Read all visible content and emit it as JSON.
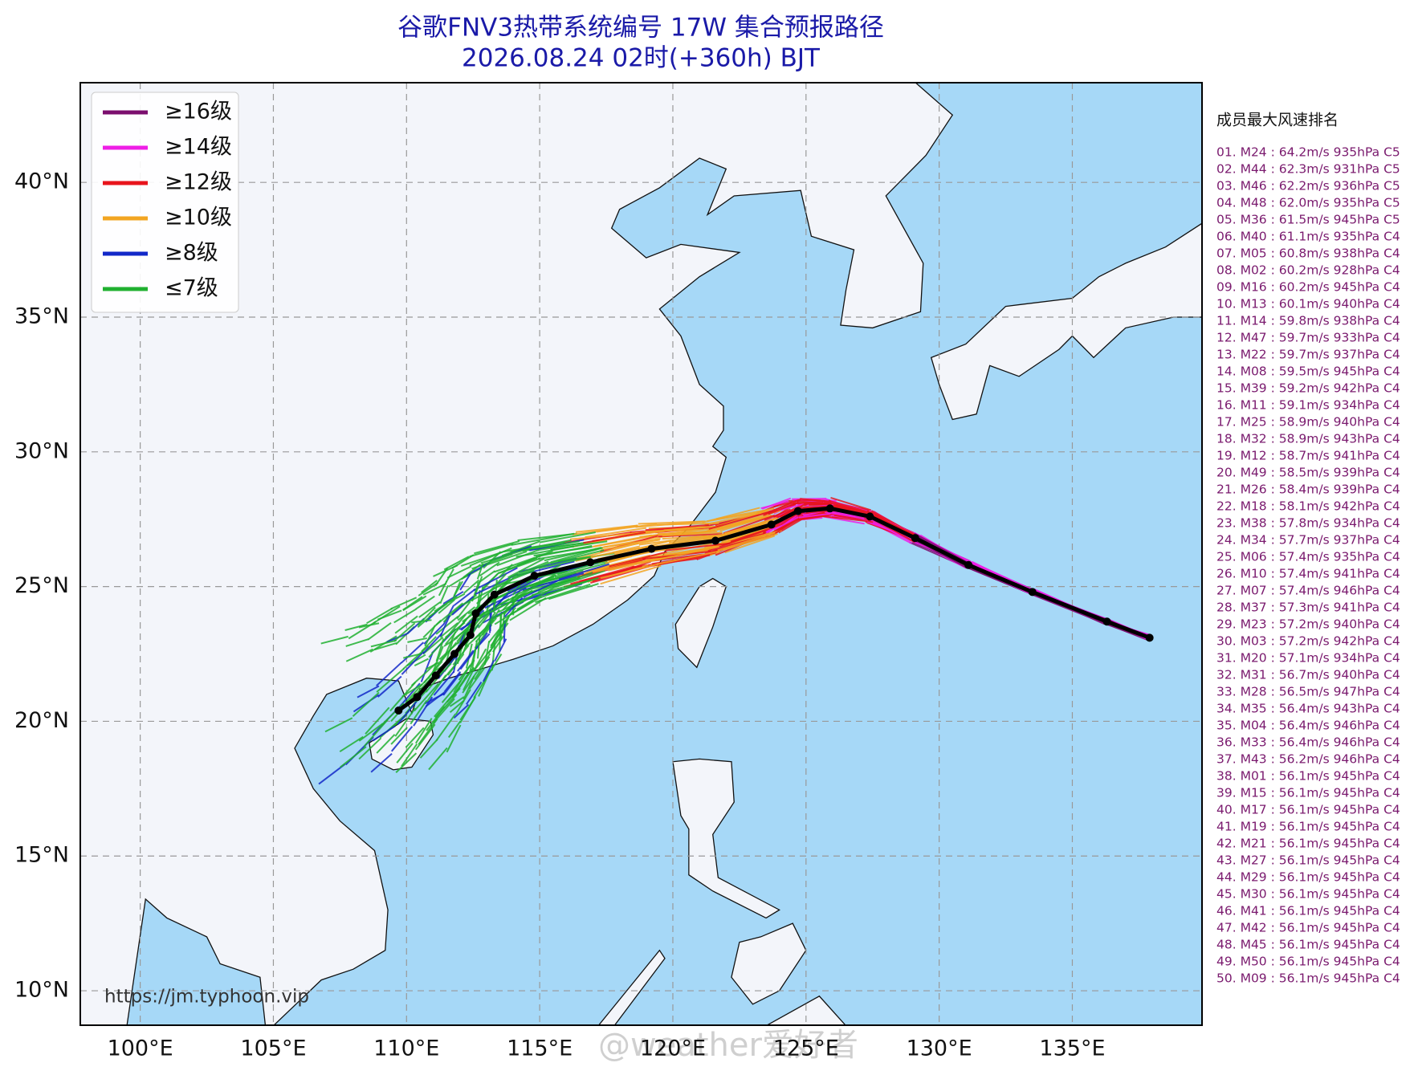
{
  "header": {
    "title": "谷歌FNV3热带系统编号 17W 集合预报路径",
    "subtitle": "2026.08.24 02时(+360h) BJT"
  },
  "map": {
    "xlim": [
      97.75,
      139.87
    ],
    "ylim": [
      8.72,
      43.7
    ],
    "xticks": [
      {
        "value": 100,
        "label": "100°E"
      },
      {
        "value": 105,
        "label": "105°E"
      },
      {
        "value": 110,
        "label": "110°E"
      },
      {
        "value": 115,
        "label": "115°E"
      },
      {
        "value": 120,
        "label": "120°E"
      },
      {
        "value": 125,
        "label": "125°E"
      },
      {
        "value": 130,
        "label": "130°E"
      },
      {
        "value": 135,
        "label": "135°E"
      }
    ],
    "yticks": [
      {
        "value": 10,
        "label": "10°N"
      },
      {
        "value": 15,
        "label": "15°N"
      },
      {
        "value": 20,
        "label": "20°N"
      },
      {
        "value": 25,
        "label": "25°N"
      },
      {
        "value": 30,
        "label": "30°N"
      },
      {
        "value": 35,
        "label": "35°N"
      },
      {
        "value": 40,
        "label": "40°N"
      }
    ],
    "grid": true,
    "mean_track": {
      "color": "#000000",
      "lon": [
        137.9,
        136.3,
        133.5,
        131.1,
        129.1,
        127.4,
        125.9,
        124.7,
        123.7,
        121.6,
        119.2,
        116.9,
        114.8,
        113.3,
        112.6,
        112.4,
        111.8,
        111.1,
        110.4,
        109.7
      ],
      "lat": [
        23.1,
        23.7,
        24.8,
        25.8,
        26.8,
        27.6,
        27.9,
        27.8,
        27.3,
        26.7,
        26.4,
        25.9,
        25.4,
        24.7,
        24.0,
        23.2,
        22.5,
        21.7,
        20.9,
        20.4
      ]
    }
  },
  "legend": [
    {
      "label": "≥16级",
      "color": "#7b0e6e"
    },
    {
      "label": "≥14级",
      "color": "#ee1ee6"
    },
    {
      "label": "≥12级",
      "color": "#e8141c"
    },
    {
      "label": "≥10级",
      "color": "#f2a522"
    },
    {
      "label": "≥8级",
      "color": "#1228c8"
    },
    {
      "label": "≤7级",
      "color": "#20b030"
    }
  ],
  "ranking": {
    "title": "成员最大风速排名",
    "items": [
      "01. M24 : 64.2m/s 935hPa C5",
      "02. M44 : 62.3m/s 931hPa C5",
      "03. M46 : 62.2m/s 936hPa C5",
      "04. M48 : 62.0m/s 935hPa C5",
      "05. M36 : 61.5m/s 945hPa C5",
      "06. M40 : 61.1m/s 935hPa C4",
      "07. M05 : 60.8m/s 938hPa C4",
      "08. M02 : 60.2m/s 928hPa C4",
      "09. M16 : 60.2m/s 945hPa C4",
      "10. M13 : 60.1m/s 940hPa C4",
      "11. M14 : 59.8m/s 938hPa C4",
      "12. M47 : 59.7m/s 933hPa C4",
      "13. M22 : 59.7m/s 937hPa C4",
      "14. M08 : 59.5m/s 945hPa C4",
      "15. M39 : 59.2m/s 942hPa C4",
      "16. M11 : 59.1m/s 934hPa C4",
      "17. M25 : 58.9m/s 940hPa C4",
      "18. M32 : 58.9m/s 943hPa C4",
      "19. M12 : 58.7m/s 941hPa C4",
      "20. M49 : 58.5m/s 939hPa C4",
      "21. M26 : 58.4m/s 939hPa C4",
      "22. M18 : 58.1m/s 942hPa C4",
      "23. M38 : 57.8m/s 934hPa C4",
      "24. M34 : 57.7m/s 937hPa C4",
      "25. M06 : 57.4m/s 935hPa C4",
      "26. M10 : 57.4m/s 941hPa C4",
      "27. M07 : 57.4m/s 946hPa C4",
      "28. M37 : 57.3m/s 941hPa C4",
      "29. M23 : 57.2m/s 940hPa C4",
      "30. M03 : 57.2m/s 942hPa C4",
      "31. M20 : 57.1m/s 934hPa C4",
      "32. M31 : 56.7m/s 940hPa C4",
      "33. M28 : 56.5m/s 947hPa C4",
      "34. M35 : 56.4m/s 943hPa C4",
      "35. M04 : 56.4m/s 946hPa C4",
      "36. M33 : 56.4m/s 946hPa C4",
      "37. M43 : 56.2m/s 946hPa C4",
      "38. M01 : 56.1m/s 945hPa C4",
      "39. M15 : 56.1m/s 945hPa C4",
      "40. M17 : 56.1m/s 945hPa C4",
      "41. M19 : 56.1m/s 945hPa C4",
      "42. M21 : 56.1m/s 945hPa C4",
      "43. M27 : 56.1m/s 945hPa C4",
      "44. M29 : 56.1m/s 945hPa C4",
      "45. M30 : 56.1m/s 945hPa C4",
      "46. M41 : 56.1m/s 945hPa C4",
      "47. M42 : 56.1m/s 945hPa C4",
      "48. M45 : 56.1m/s 945hPa C4",
      "49. M50 : 56.1m/s 945hPa C4",
      "50. M09 : 56.1m/s 945hPa C4"
    ]
  },
  "watermarks": [
    "https://jm.typhoon.vip",
    "@weather爱好者"
  ]
}
